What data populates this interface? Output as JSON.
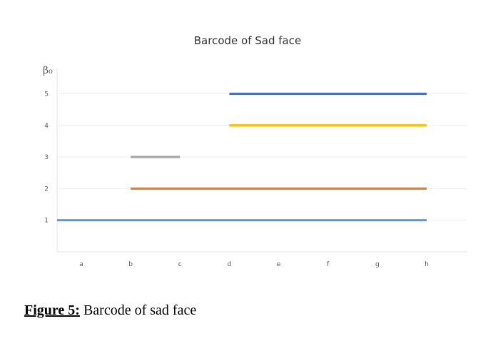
{
  "chart_data": {
    "type": "bar",
    "title": "Barcode of Sad face",
    "ylabel": "β₀",
    "xlabel": "",
    "categories": [
      "a",
      "b",
      "c",
      "d",
      "e",
      "f",
      "g",
      "h"
    ],
    "yticks": [
      1,
      2,
      3,
      4,
      5
    ],
    "ylim": [
      0,
      5.8
    ],
    "grid": true,
    "legend": "none",
    "bars": [
      {
        "y": 1,
        "start": "a",
        "end": "h",
        "color": "#5b9bd5"
      },
      {
        "y": 2,
        "start": "b",
        "end": "h",
        "color": "#ed7d31"
      },
      {
        "y": 3,
        "start": "b",
        "end": "c",
        "color": "#a5a5a5"
      },
      {
        "y": 4,
        "start": "d",
        "end": "h",
        "color": "#ffc000"
      },
      {
        "y": 5,
        "start": "d",
        "end": "h",
        "color": "#4472c4"
      }
    ]
  },
  "caption": {
    "label": "Figure 5:",
    "text": " Barcode of sad face"
  }
}
